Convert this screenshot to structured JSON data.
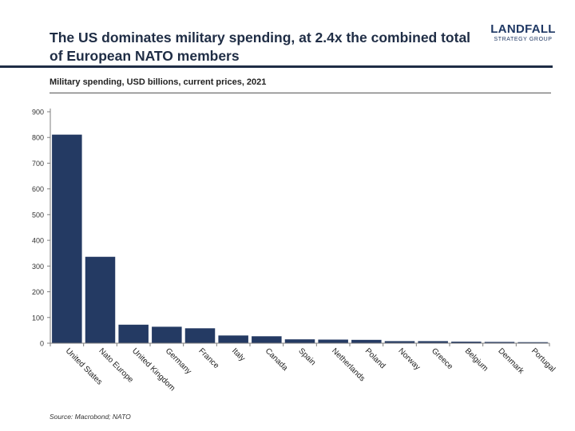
{
  "header": {
    "title": "The US dominates military spending, at 2.4x the combined total of European NATO members",
    "logo_main": "LANDFALL",
    "logo_sub": "STRATEGY GROUP"
  },
  "subtitle": "Military spending, USD billions, current prices, 2021",
  "source": "Source: Macrobond; NATO",
  "colors": {
    "bar": "#243a63",
    "title": "#1f2d45"
  },
  "chart_data": {
    "type": "bar",
    "categories": [
      "United States",
      "Nato Europe",
      "United Kingdom",
      "Germany",
      "France",
      "Italy",
      "Canada",
      "Spain",
      "Netherlands",
      "Poland",
      "Norway",
      "Greece",
      "Belgium",
      "Denmark",
      "Portugal"
    ],
    "values": [
      811,
      336,
      72,
      64,
      58,
      30,
      27,
      15,
      14,
      13,
      8,
      8,
      6,
      5,
      4
    ],
    "ylim": [
      0,
      900
    ],
    "yticks": [
      0,
      100,
      200,
      300,
      400,
      500,
      600,
      700,
      800,
      900
    ],
    "xlabel": "",
    "ylabel": "",
    "grid": false
  }
}
